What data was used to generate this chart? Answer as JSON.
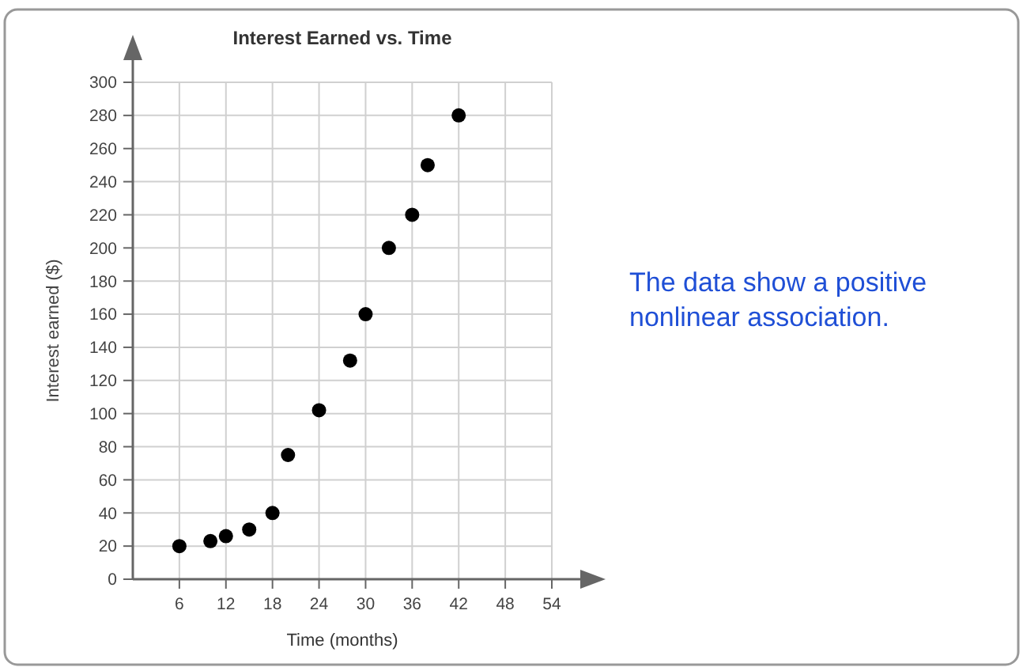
{
  "chart_data": {
    "type": "scatter",
    "title": "Interest Earned vs. Time",
    "xlabel": "Time (months)",
    "ylabel": "Interest earned ($)",
    "x": [
      6,
      10,
      12,
      15,
      18,
      20,
      24,
      28,
      30,
      33,
      36,
      38,
      42
    ],
    "values": [
      20,
      23,
      26,
      30,
      40,
      75,
      102,
      132,
      160,
      200,
      220,
      250,
      280
    ],
    "color": "#000000",
    "marker": "circle",
    "grid": true,
    "xlim": [
      0,
      54
    ],
    "xticks": [
      6,
      12,
      18,
      24,
      30,
      36,
      42,
      48,
      54
    ],
    "ylim": [
      0,
      300
    ],
    "yticks": [
      0,
      20,
      40,
      60,
      80,
      100,
      120,
      140,
      160,
      180,
      200,
      220,
      240,
      260,
      280,
      300
    ],
    "annotations": [
      "The data show a positive nonlinear association."
    ]
  }
}
